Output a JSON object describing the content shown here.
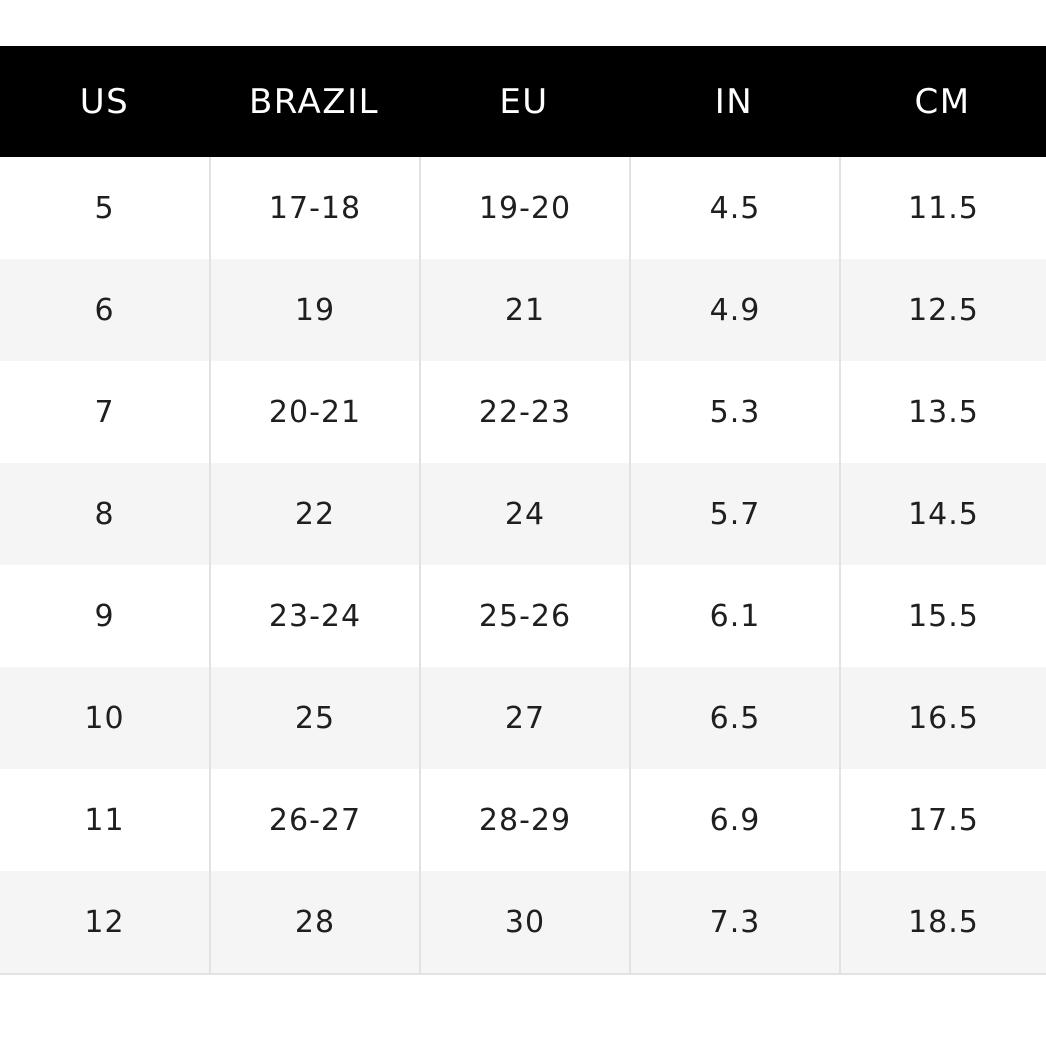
{
  "size_chart": {
    "headers": [
      "US",
      "BRAZIL",
      "EU",
      "IN",
      "CM"
    ],
    "rows": [
      [
        "5",
        "17-18",
        "19-20",
        "4.5",
        "11.5"
      ],
      [
        "6",
        "19",
        "21",
        "4.9",
        "12.5"
      ],
      [
        "7",
        "20-21",
        "22-23",
        "5.3",
        "13.5"
      ],
      [
        "8",
        "22",
        "24",
        "5.7",
        "14.5"
      ],
      [
        "9",
        "23-24",
        "25-26",
        "6.1",
        "15.5"
      ],
      [
        "10",
        "25",
        "27",
        "6.5",
        "16.5"
      ],
      [
        "11",
        "26-27",
        "28-29",
        "6.9",
        "17.5"
      ],
      [
        "12",
        "28",
        "30",
        "7.3",
        "18.5"
      ]
    ]
  },
  "colors": {
    "header_background": "#000000",
    "header_text": "#ffffff",
    "row_alt_background": "#f5f5f5",
    "grid_line": "#e2e2e2"
  }
}
